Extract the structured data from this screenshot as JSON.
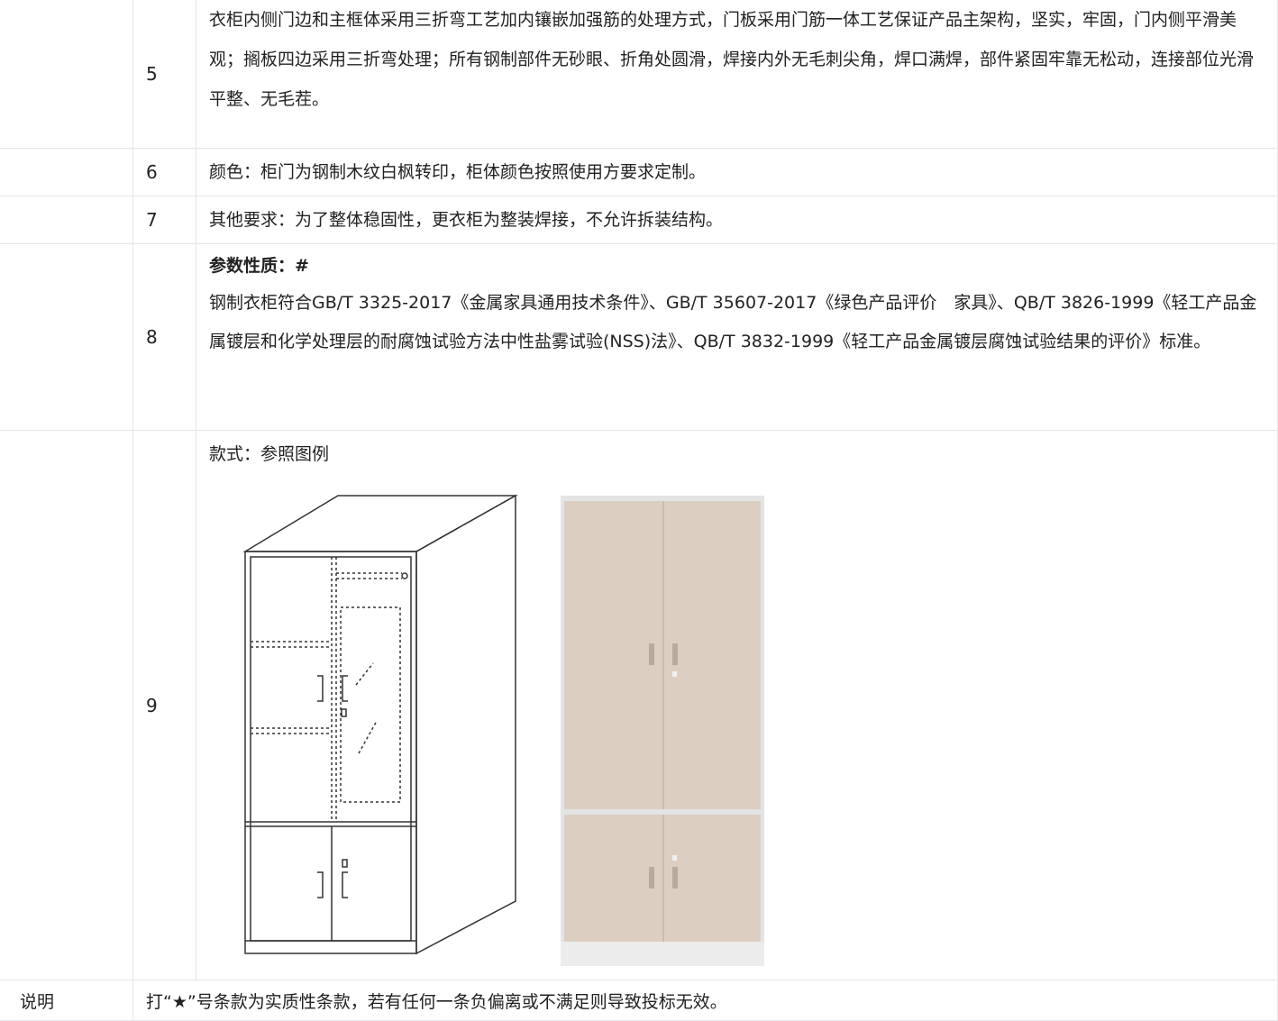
{
  "table": {
    "rows": [
      {
        "index": "5",
        "text": "衣柜内侧门边和主框体采用三折弯工艺加内镶嵌加强筋的处理方式，门板采用门筋一体工艺保证产品主架构，坚实，牢固，门内侧平滑美观；搁板四边采用三折弯处理；所有钢制部件无砂眼、折角处圆滑，焊接内外无毛刺尖角，焊口满焊，部件紧固牢靠无松动，连接部位光滑平整、无毛茬。"
      },
      {
        "index": "6",
        "text": "颜色：柜门为钢制木纹白枫转印，柜体颜色按照使用方要求定制。"
      },
      {
        "index": "7",
        "text": "其他要求：为了整体稳固性，更衣柜为整装焊接，不允许拆装结构。"
      },
      {
        "index": "8",
        "heading": "参数性质：#",
        "text": "钢制衣柜符合GB/T 3325-2017《金属家具通用技术条件》、GB/T 35607-2017《绿色产品评价　家具》、QB/T 3826-1999《轻工产品金属镀层和化学处理层的耐腐蚀试验方法中性盐雾试验(NSS)法》、QB/T 3832-1999《轻工产品金属镀层腐蚀试验结果的评价》标准。"
      },
      {
        "index": "9",
        "text": "款式：参照图例"
      }
    ],
    "note": {
      "label": "说明",
      "text": "打“★”号条款为实质性条款，若有任何一条负偏离或不满足则导致投标无效。"
    }
  }
}
